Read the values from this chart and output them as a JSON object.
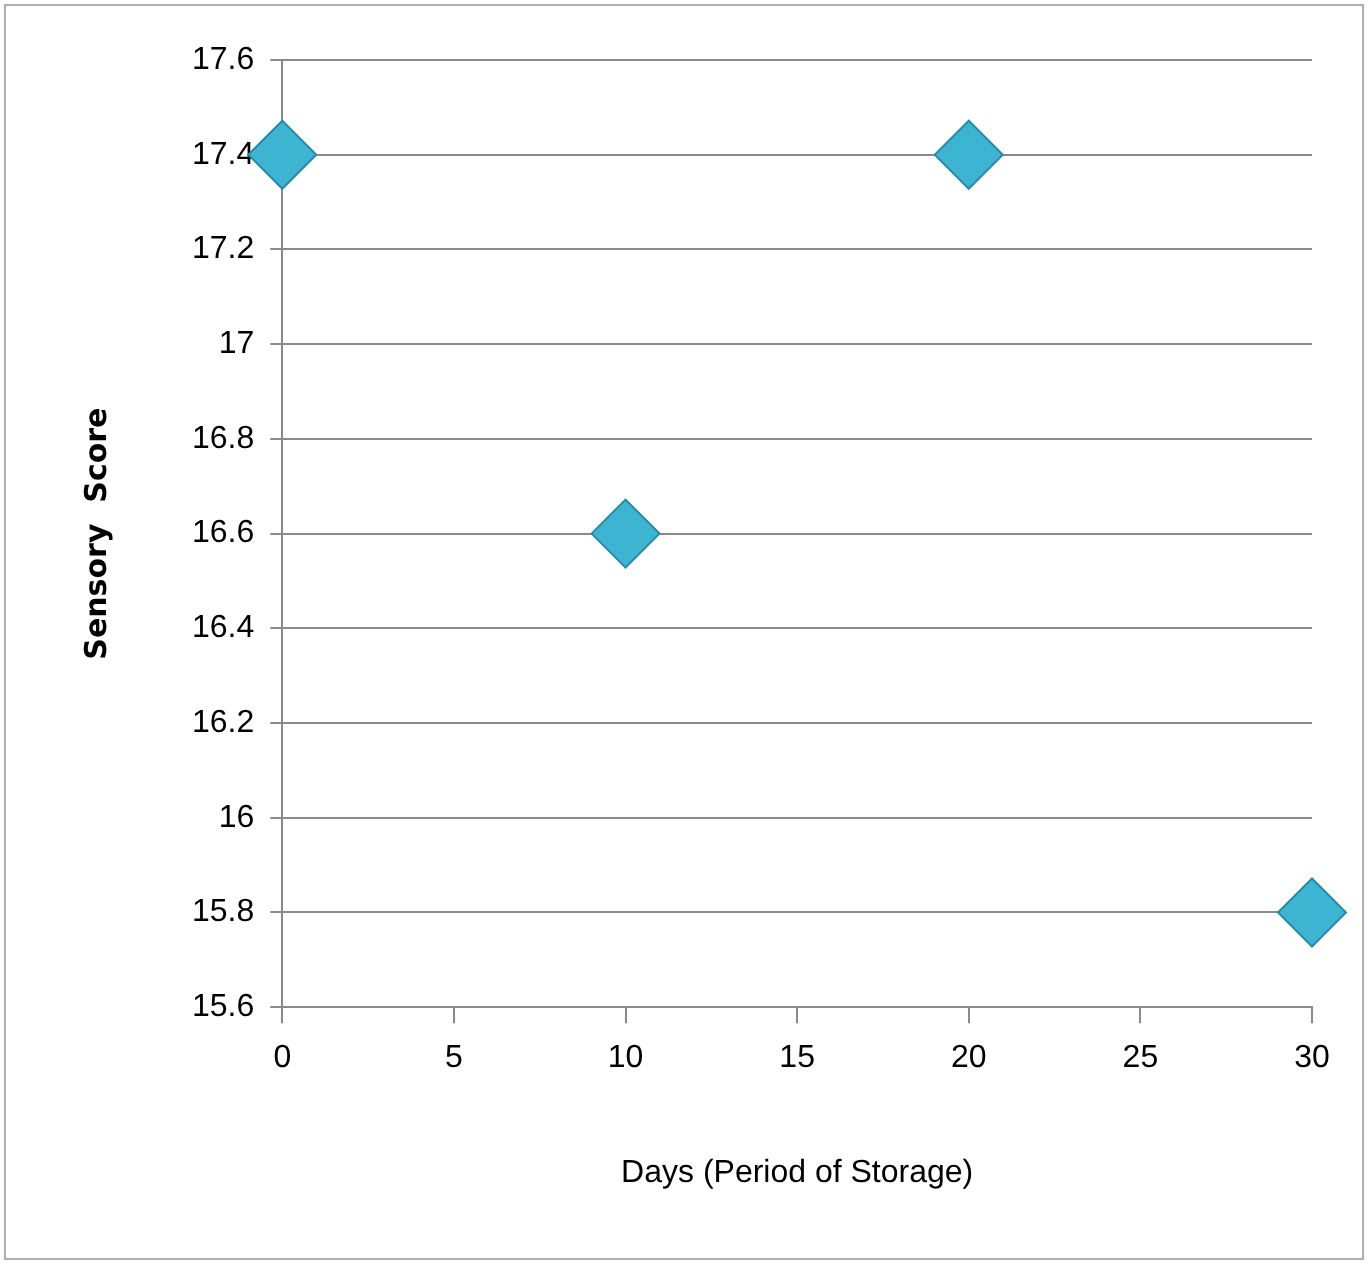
{
  "chart_data": {
    "type": "scatter",
    "xlabel": "Days (Period of Storage)",
    "ylabel": "Sensory  Score",
    "x": [
      0,
      10,
      20,
      30
    ],
    "series": [
      {
        "color": "#3cb4d2",
        "values": [
          17.4,
          16.6,
          17.4,
          15.8
        ]
      }
    ],
    "xlim": [
      0,
      30
    ],
    "xticks": [
      0,
      5,
      10,
      15,
      20,
      25,
      30
    ],
    "ylim": [
      15.6,
      17.6
    ],
    "yticks": [
      15.6,
      15.8,
      16,
      16.2,
      16.4,
      16.6,
      16.8,
      17,
      17.2,
      17.4,
      17.6
    ],
    "grid": "y",
    "legend": false,
    "marker": "diamond"
  }
}
